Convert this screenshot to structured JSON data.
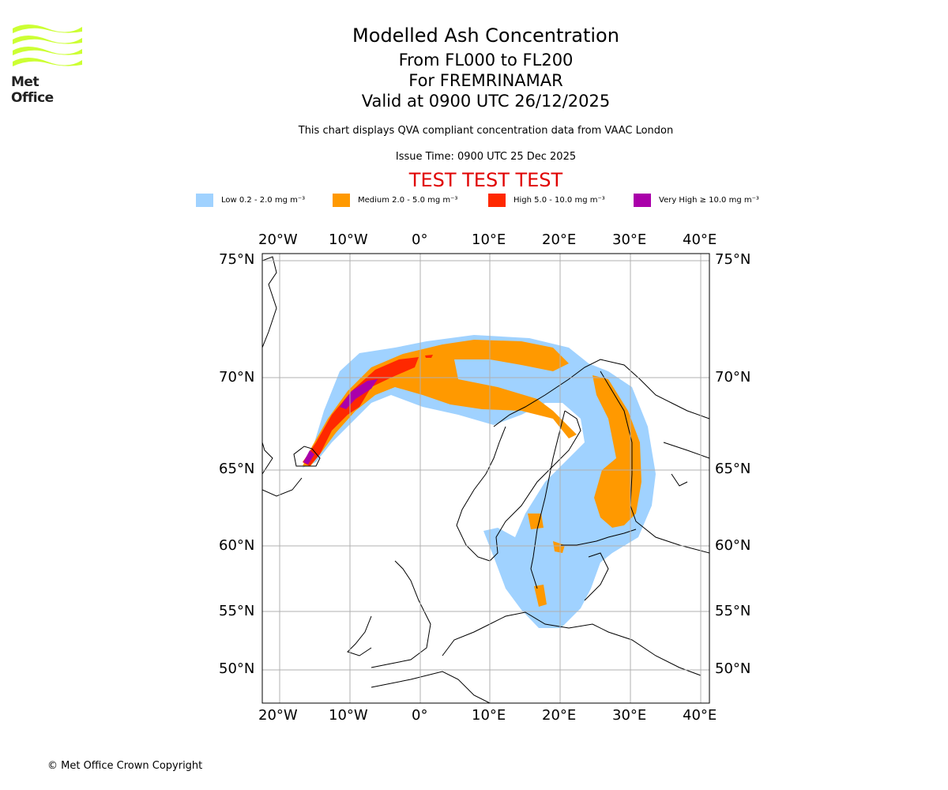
{
  "logo": {
    "text": "Met Office",
    "color": "#ccff33"
  },
  "title": {
    "main": "Modelled Ash Concentration",
    "levels": "From FL000 to FL200",
    "volcano": "For FREMRINAMAR",
    "valid": "Valid at 0900 UTC 26/12/2025"
  },
  "description": "This chart displays QVA compliant concentration data from VAAC London",
  "issue_time": "Issue Time: 0900 UTC 25 Dec 2025",
  "test_banner": "TEST TEST TEST",
  "legend": [
    {
      "label": "Low 0.2 - 2.0 mg m⁻³",
      "color": "#a0d2ff"
    },
    {
      "label": "Medium 2.0 - 5.0 mg m⁻³",
      "color": "#ff9900"
    },
    {
      "label": "High 5.0 - 10.0 mg m⁻³",
      "color": "#ff2800"
    },
    {
      "label": "Very High ≥ 10.0 mg m⁻³",
      "color": "#aa00aa"
    }
  ],
  "map": {
    "lon_labels": [
      "20°W",
      "10°W",
      "0°",
      "10°E",
      "20°E",
      "30°E",
      "40°E"
    ],
    "lat_labels": [
      "75°N",
      "70°N",
      "65°N",
      "60°N",
      "55°N",
      "50°N"
    ]
  },
  "copyright": "© Met Office Crown Copyright"
}
